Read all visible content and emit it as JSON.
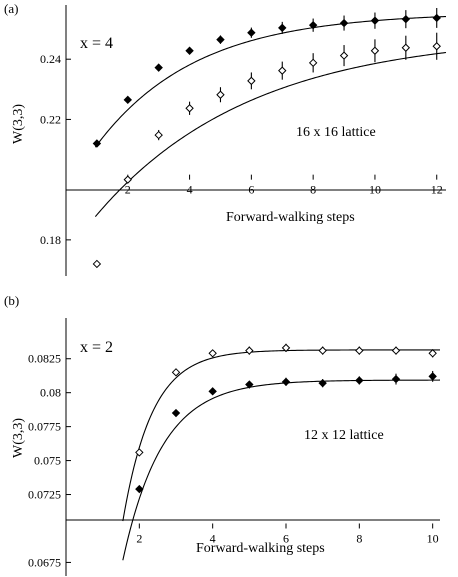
{
  "chart_data": [
    {
      "type": "scatter",
      "panel_label": "(a)",
      "annotation": "x = 4",
      "lattice_label": "16 x 16 lattice",
      "xlabel": "Forward-walking steps",
      "ylabel": "W(3,3)",
      "xlim": [
        0,
        12.3
      ],
      "ylim": [
        0.168,
        0.258
      ],
      "x_axis_at_y": 0.2,
      "xticks": [
        2,
        4,
        6,
        8,
        10,
        12
      ],
      "yticks": [
        {
          "v": 0.18,
          "label": "0.18"
        },
        {
          "v": 0.22,
          "label": "0.22"
        },
        {
          "v": 0.24,
          "label": "0.24"
        }
      ],
      "grid": false,
      "series": [
        {
          "marker": "filled-diamond",
          "x": [
            1,
            2,
            3,
            4,
            5,
            6,
            7,
            8,
            9,
            10,
            11,
            12
          ],
          "y": [
            0.212,
            0.2265,
            0.2372,
            0.2428,
            0.2465,
            0.2488,
            0.2504,
            0.2513,
            0.252,
            0.2528,
            0.2533,
            0.2537
          ],
          "err": [
            0.0005,
            0.0005,
            0.0008,
            0.001,
            0.0014,
            0.0017,
            0.002,
            0.0022,
            0.0025,
            0.0027,
            0.003,
            0.0033
          ]
        },
        {
          "marker": "open-diamond",
          "x": [
            1,
            2,
            3,
            4,
            5,
            6,
            7,
            8,
            9,
            10,
            11,
            12
          ],
          "y": [
            0.172,
            0.2,
            0.2148,
            0.2237,
            0.2282,
            0.2328,
            0.2362,
            0.2388,
            0.2412,
            0.2428,
            0.2438,
            0.2443
          ],
          "err": [
            0.0006,
            0.0007,
            0.0017,
            0.0022,
            0.0025,
            0.0028,
            0.003,
            0.0032,
            0.0035,
            0.0038,
            0.004,
            0.0045
          ]
        }
      ],
      "fits": [
        {
          "a": 0.2555,
          "b": 0.06,
          "k": 0.31,
          "xstart": 0.95
        },
        {
          "a": 0.2485,
          "b": 0.0735,
          "k": 0.2,
          "xstart": 0.95
        }
      ]
    },
    {
      "type": "scatter",
      "panel_label": "(b)",
      "annotation": "x = 2",
      "lattice_label": "12 x 12 lattice",
      "xlabel": "Forward-walking steps",
      "ylabel": "W(3,3)",
      "xlim": [
        0,
        10.2
      ],
      "ylim": [
        0.0665,
        0.0855
      ],
      "x_axis_at_y": 0.07,
      "xticks": [
        2,
        4,
        6,
        8,
        10
      ],
      "yticks": [
        {
          "v": 0.0675,
          "label": "0.0675"
        },
        {
          "v": 0.0725,
          "label": "0.0725"
        },
        {
          "v": 0.075,
          "label": "0.075"
        },
        {
          "v": 0.0775,
          "label": "0.0775"
        },
        {
          "v": 0.08,
          "label": "0.08"
        },
        {
          "v": 0.0825,
          "label": "0.0825"
        }
      ],
      "grid": false,
      "series": [
        {
          "marker": "open-diamond",
          "x": [
            2,
            3,
            4,
            5,
            6,
            7,
            8,
            9,
            10
          ],
          "y": [
            0.0756,
            0.0815,
            0.0829,
            0.0831,
            0.0833,
            0.0831,
            0.0831,
            0.0831,
            0.0829
          ],
          "err": [
            0.0001,
            0.0001,
            0.0002,
            0.0003,
            0.0003,
            0.0003,
            0.0003,
            0.0003,
            0.0003
          ]
        },
        {
          "marker": "filled-diamond",
          "x": [
            2,
            3,
            4,
            5,
            6,
            7,
            8,
            9,
            10
          ],
          "y": [
            0.0729,
            0.0785,
            0.0801,
            0.0806,
            0.0808,
            0.0807,
            0.0809,
            0.081,
            0.0812
          ],
          "err": [
            0.0001,
            0.0001,
            0.0002,
            0.0002,
            0.0003,
            0.0003,
            0.0003,
            0.0004,
            0.0004
          ]
        }
      ],
      "fits": [
        {
          "a": 0.08315,
          "b": 0.0875,
          "k": 1.25,
          "xstart": 1.55
        },
        {
          "a": 0.08093,
          "b": 0.0561,
          "k": 0.93,
          "xstart": 1.55
        }
      ]
    }
  ]
}
